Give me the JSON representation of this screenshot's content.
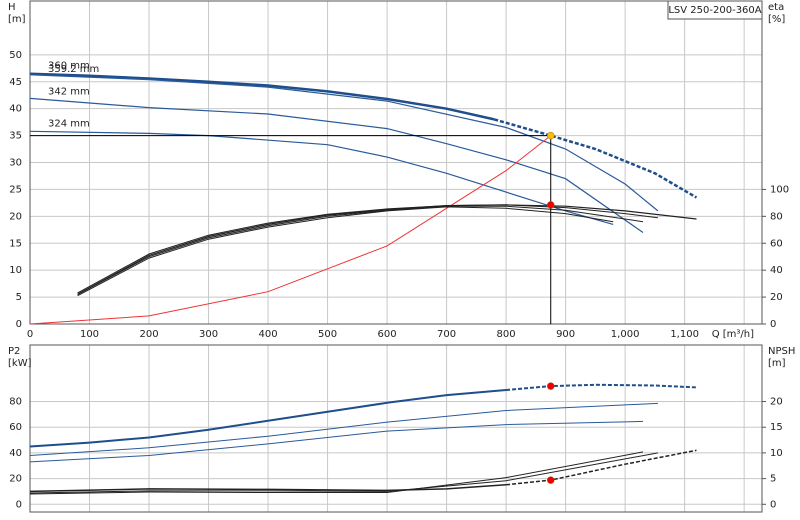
{
  "chart_data": [
    {
      "type": "line",
      "title": "LSV 250-200-360A",
      "ylabel": [
        "H",
        "[m]"
      ],
      "y2label": [
        "eta",
        "[%]"
      ],
      "xlabel": "Q [m³/h]",
      "xlim": [
        0,
        1230
      ],
      "ylim": [
        0,
        60
      ],
      "y2lim": [
        0,
        240
      ],
      "xticks": [
        0,
        100,
        200,
        300,
        400,
        500,
        600,
        700,
        800,
        900,
        {
          "value": 1000,
          "label": "1,000"
        },
        {
          "value": 1100,
          "label": "1,100"
        }
      ],
      "xgrid": [
        0,
        100,
        200,
        300,
        400,
        500,
        600,
        700,
        800,
        900,
        1000,
        1100,
        1200
      ],
      "yticks": [
        0,
        5,
        10,
        15,
        20,
        25,
        30,
        35,
        40,
        45,
        50
      ],
      "y2ticks": [
        0,
        20,
        40,
        60,
        80,
        100
      ],
      "grid": true,
      "series": [
        {
          "label": "360 mm",
          "color": "#1f4e8c",
          "width": 2.5,
          "x": [
            0,
            100,
            200,
            300,
            400,
            500,
            600,
            700,
            780
          ],
          "values": [
            46.5,
            46.1,
            45.6,
            45,
            44.3,
            43.2,
            41.8,
            40,
            38
          ]
        },
        {
          "color": "#1f4e8c",
          "width": 2.5,
          "dash": true,
          "x": [
            780,
            875,
            950,
            1050,
            1120
          ],
          "values": [
            38,
            35,
            32.5,
            28,
            23.5
          ]
        },
        {
          "label": "359.2 mm",
          "color": "#2a5a9a",
          "width": 1.2,
          "x": [
            0,
            200,
            400,
            600,
            800,
            900,
            1000,
            1055
          ],
          "values": [
            46.3,
            45.4,
            44,
            41.4,
            36.5,
            32.5,
            26,
            21
          ]
        },
        {
          "label": "342 mm",
          "color": "#2a5a9a",
          "width": 1.2,
          "x": [
            0,
            200,
            400,
            600,
            700,
            800,
            900,
            1030
          ],
          "values": [
            41.9,
            40.2,
            39,
            36.3,
            33.5,
            30.5,
            27,
            17
          ]
        },
        {
          "label": "324 mm",
          "color": "#2a5a9a",
          "width": 1.2,
          "x": [
            0,
            200,
            300,
            500,
            600,
            700,
            800,
            900,
            980
          ],
          "values": [
            35.8,
            35.4,
            35,
            33.3,
            31,
            28,
            24.5,
            21,
            18.5
          ]
        },
        {
          "color": "#e33",
          "width": 1,
          "x": [
            0,
            200,
            400,
            600,
            800,
            875
          ],
          "values": [
            0,
            1.5,
            6,
            14.5,
            28.5,
            35
          ]
        },
        {
          "color": "#222",
          "width": 1.2,
          "axis": "y2",
          "x": [
            80,
            200,
            300,
            400,
            500,
            600,
            700,
            800,
            900,
            1000,
            1120
          ],
          "values": [
            22,
            51,
            65,
            74,
            81,
            85,
            88,
            88.5,
            87.5,
            84,
            78
          ]
        },
        {
          "color": "#222",
          "width": 1,
          "axis": "y2",
          "x": [
            80,
            200,
            300,
            400,
            500,
            600,
            700,
            800,
            900,
            1000,
            1055
          ],
          "values": [
            23,
            52,
            66,
            75,
            81.5,
            85.5,
            88,
            88.5,
            86.5,
            82,
            79
          ]
        },
        {
          "color": "#222",
          "width": 1,
          "axis": "y2",
          "x": [
            80,
            200,
            300,
            400,
            500,
            600,
            700,
            800,
            900,
            1030
          ],
          "values": [
            22,
            50,
            64,
            73,
            80,
            84.5,
            87.5,
            87.5,
            84.5,
            76
          ]
        },
        {
          "color": "#222",
          "width": 1,
          "axis": "y2",
          "x": [
            80,
            200,
            300,
            400,
            500,
            600,
            700,
            800,
            900,
            980
          ],
          "values": [
            21,
            49,
            63,
            72,
            79,
            84,
            87,
            86,
            82,
            76
          ]
        }
      ],
      "points": [
        {
          "color": "#f2c200",
          "x": 875,
          "y": 35,
          "crosshair": true
        },
        {
          "color": "#e00",
          "x": 875,
          "y": 88.5,
          "axis": "y2"
        }
      ]
    },
    {
      "type": "line",
      "ylabel": [
        "P2",
        "[kW]"
      ],
      "y2label": [
        "NPSH",
        "[m]"
      ],
      "xlim": [
        0,
        1230
      ],
      "ylim": [
        -6,
        124
      ],
      "y2lim": [
        -1.5,
        31
      ],
      "xgrid": [
        0,
        100,
        200,
        300,
        400,
        500,
        600,
        700,
        800,
        900,
        1000,
        1100,
        1200
      ],
      "yticks": [
        0,
        20,
        40,
        60,
        80
      ],
      "y2ticks": [
        0,
        5,
        10,
        15,
        20
      ],
      "grid": true,
      "series": [
        {
          "color": "#1f4e8c",
          "width": 2,
          "x": [
            0,
            100,
            200,
            300,
            400,
            500,
            600,
            700,
            800
          ],
          "values": [
            45,
            48,
            52,
            58,
            65,
            72,
            79,
            85,
            89
          ]
        },
        {
          "color": "#1f4e8c",
          "width": 2,
          "dash": true,
          "x": [
            800,
            875,
            950,
            1050,
            1120
          ],
          "values": [
            89,
            92,
            93,
            92.5,
            91
          ]
        },
        {
          "color": "#2a5a9a",
          "width": 1,
          "x": [
            0,
            200,
            400,
            600,
            800,
            1055
          ],
          "values": [
            38,
            44,
            53,
            64,
            73,
            78.5
          ]
        },
        {
          "color": "#2a5a9a",
          "width": 1,
          "x": [
            0,
            200,
            400,
            600,
            800,
            1030
          ],
          "values": [
            33,
            38,
            47,
            57,
            62,
            64.5
          ]
        },
        {
          "color": "#222",
          "width": 1.5,
          "axis": "y2",
          "x": [
            0,
            200,
            400,
            600,
            700,
            800
          ],
          "values": [
            2.5,
            3,
            2.9,
            2.7,
            3,
            3.8
          ]
        },
        {
          "color": "#222",
          "width": 1.5,
          "axis": "y2",
          "dash": true,
          "x": [
            800,
            875,
            1000,
            1120
          ],
          "values": [
            3.8,
            4.7,
            7.8,
            10.5
          ]
        },
        {
          "color": "#222",
          "width": 1,
          "axis": "y2",
          "x": [
            0,
            200,
            400,
            600,
            800,
            1055
          ],
          "values": [
            2.2,
            2.6,
            2.6,
            2.5,
            4.6,
            10
          ]
        },
        {
          "color": "#222",
          "width": 1,
          "axis": "y2",
          "x": [
            0,
            200,
            400,
            600,
            800,
            1030
          ],
          "values": [
            2,
            2.4,
            2.3,
            2.3,
            5.2,
            10.2
          ]
        }
      ],
      "points": [
        {
          "color": "#e00",
          "x": 875,
          "y": 92
        },
        {
          "color": "#e00",
          "x": 875,
          "y": 4.7,
          "axis": "y2"
        }
      ]
    }
  ]
}
